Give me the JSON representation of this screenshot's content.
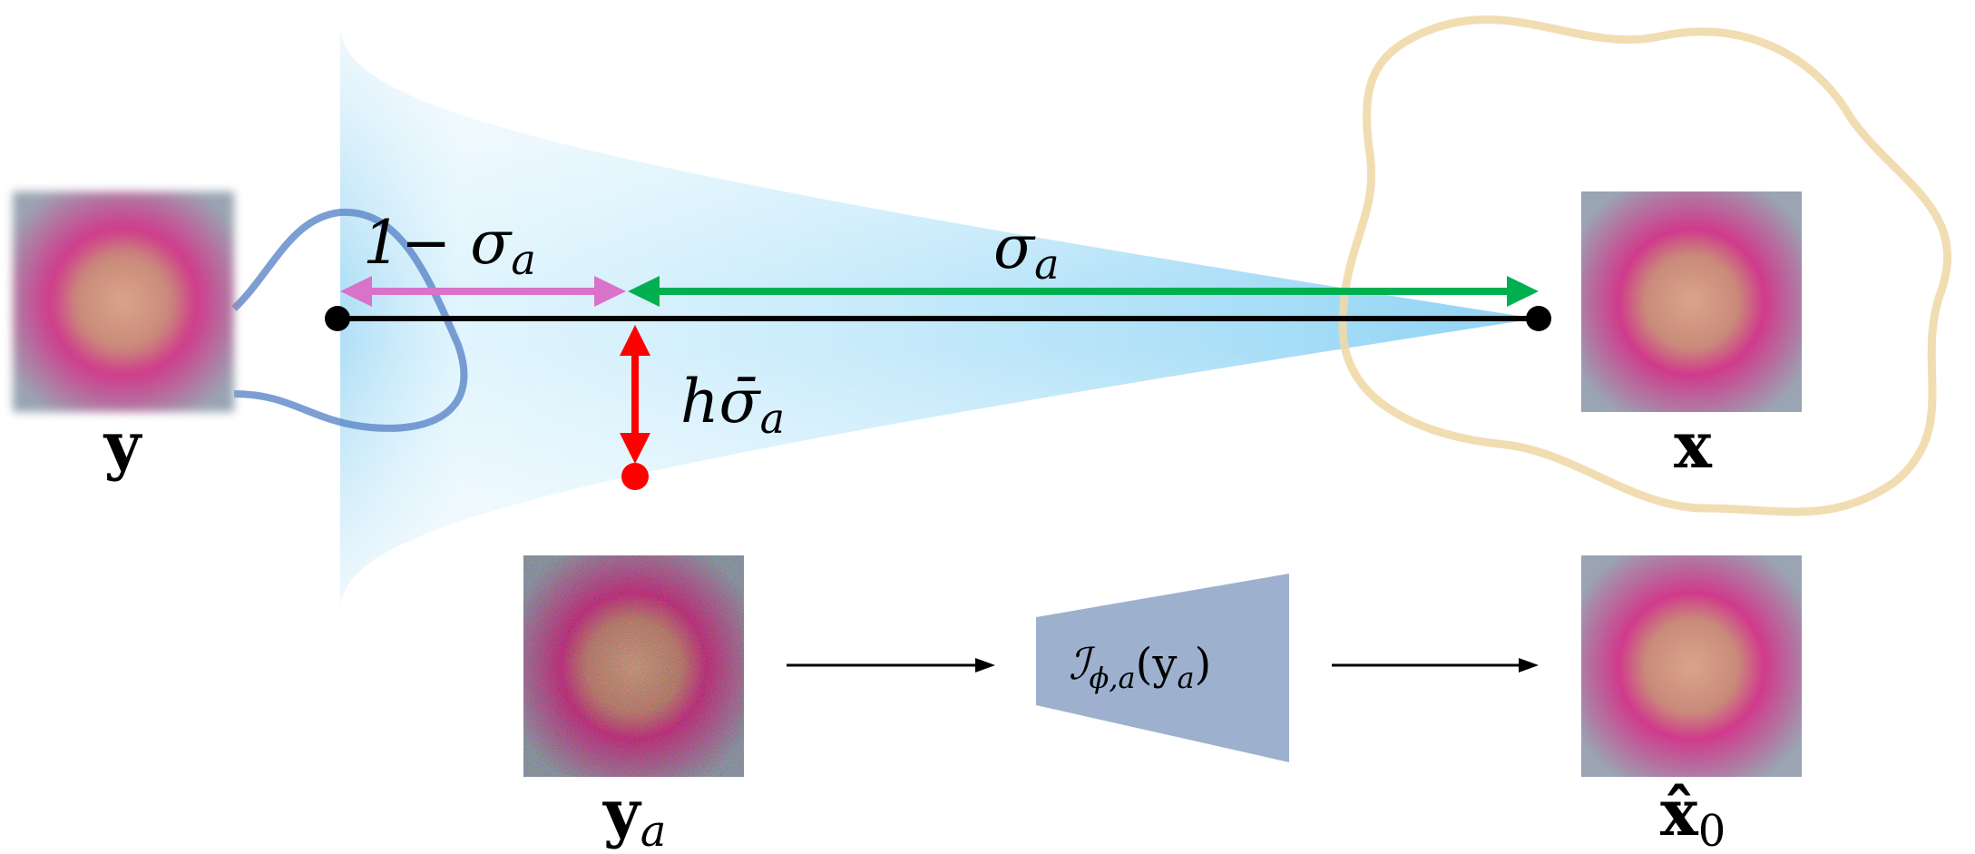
{
  "labels": {
    "degraded": {
      "main": "y"
    },
    "clean": {
      "main": "x"
    },
    "one_minus_sigma": {
      "main": "1− σ",
      "sub": "a"
    },
    "sigma": {
      "main": "σ",
      "sub": "a"
    },
    "h_sigma_bar": {
      "main": "hσ̄",
      "sub": "a"
    },
    "noisy": {
      "main": "y",
      "sub": "a"
    },
    "estimate": {
      "main": "x̂",
      "sub": "0"
    },
    "network": {
      "main": "ℐ",
      "sub": "ϕ,a",
      "arg_open": "(y",
      "arg_sub": "a",
      "arg_close": ")"
    }
  }
}
